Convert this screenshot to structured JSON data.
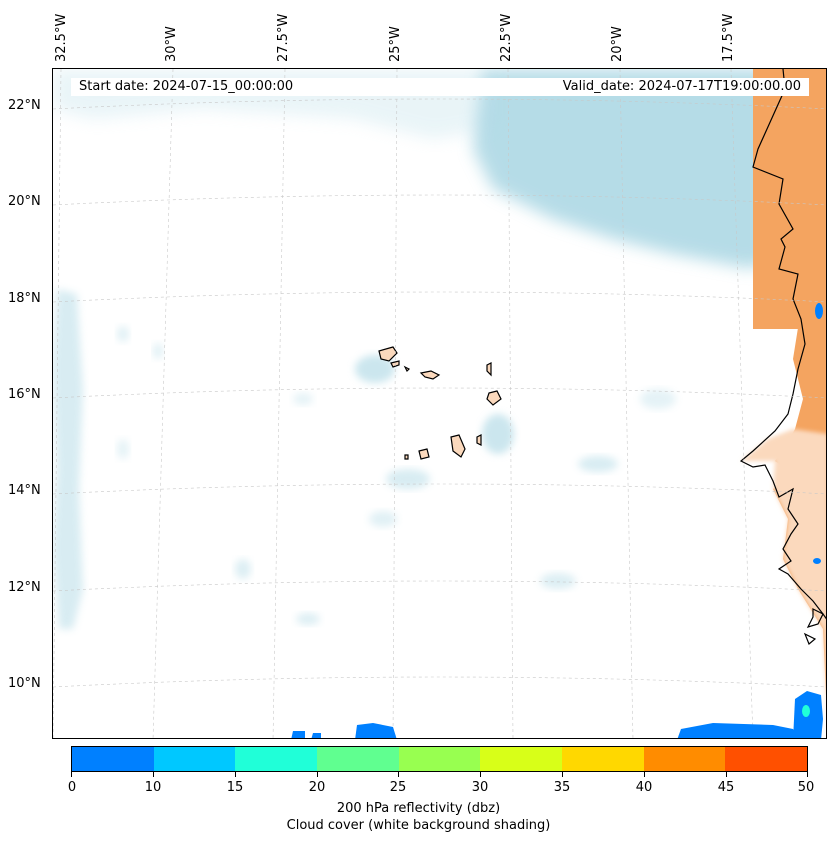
{
  "map": {
    "start_date": "Start date: 2024-07-15_00:00:00",
    "valid_date": "Valid_date: 2024-07-17T19:00:00.00",
    "lon_labels": [
      "32.5°W",
      "30°W",
      "27.5°W",
      "25°W",
      "22.5°W",
      "20°W",
      "17.5°W"
    ],
    "lat_labels": [
      "22°N",
      "20°N",
      "18°N",
      "16°N",
      "14°N",
      "12°N",
      "10°N"
    ],
    "colors": {
      "land": "#f4a460",
      "land_light": "#fbd9bd",
      "cloud": "#a9d6e3",
      "coast": "#000000",
      "grid": "#c8c8c8"
    }
  },
  "colorbar": {
    "ticks": [
      "0",
      "10",
      "15",
      "20",
      "25",
      "30",
      "35",
      "40",
      "45",
      "50"
    ],
    "colors": [
      "#0080ff",
      "#00c8ff",
      "#20ffd8",
      "#60ff90",
      "#98ff50",
      "#d8ff18",
      "#ffd800",
      "#ff8c00",
      "#ff5000"
    ],
    "label": "200 hPa reflectivity (dbz)",
    "sublabel": "Cloud cover (white background shading)"
  }
}
